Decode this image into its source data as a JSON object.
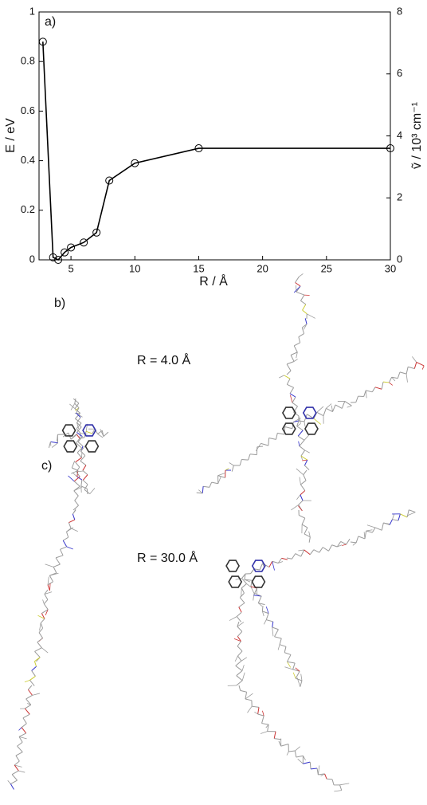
{
  "chart_data": {
    "type": "line",
    "annotation": "a)",
    "x_label": "R / Å",
    "y_label": "E / eV",
    "y2_label": "ṽ / 10³ cm⁻¹",
    "x": [
      2.8,
      3.6,
      4.0,
      4.5,
      5,
      6,
      7,
      8,
      10,
      15,
      30
    ],
    "values": [
      0.88,
      0.01,
      0.0,
      0.03,
      0.05,
      0.07,
      0.11,
      0.32,
      0.39,
      0.45,
      0.45
    ],
    "color": "#000000",
    "marker": "circle",
    "xlim": [
      2.5,
      30
    ],
    "xticks": [
      5,
      10,
      15,
      20,
      25,
      30
    ],
    "ylim": [
      0,
      1
    ],
    "yticks": [
      0,
      0.2,
      0.4,
      0.6,
      0.8,
      1
    ],
    "y2lim": [
      0,
      8
    ],
    "y2ticks": [
      0,
      2,
      4,
      6,
      8
    ]
  },
  "panels": [
    {
      "label": "b)",
      "caption": "R = 4.0 Å"
    },
    {
      "label": "c)",
      "caption": "R = 30.0 Å"
    }
  ]
}
